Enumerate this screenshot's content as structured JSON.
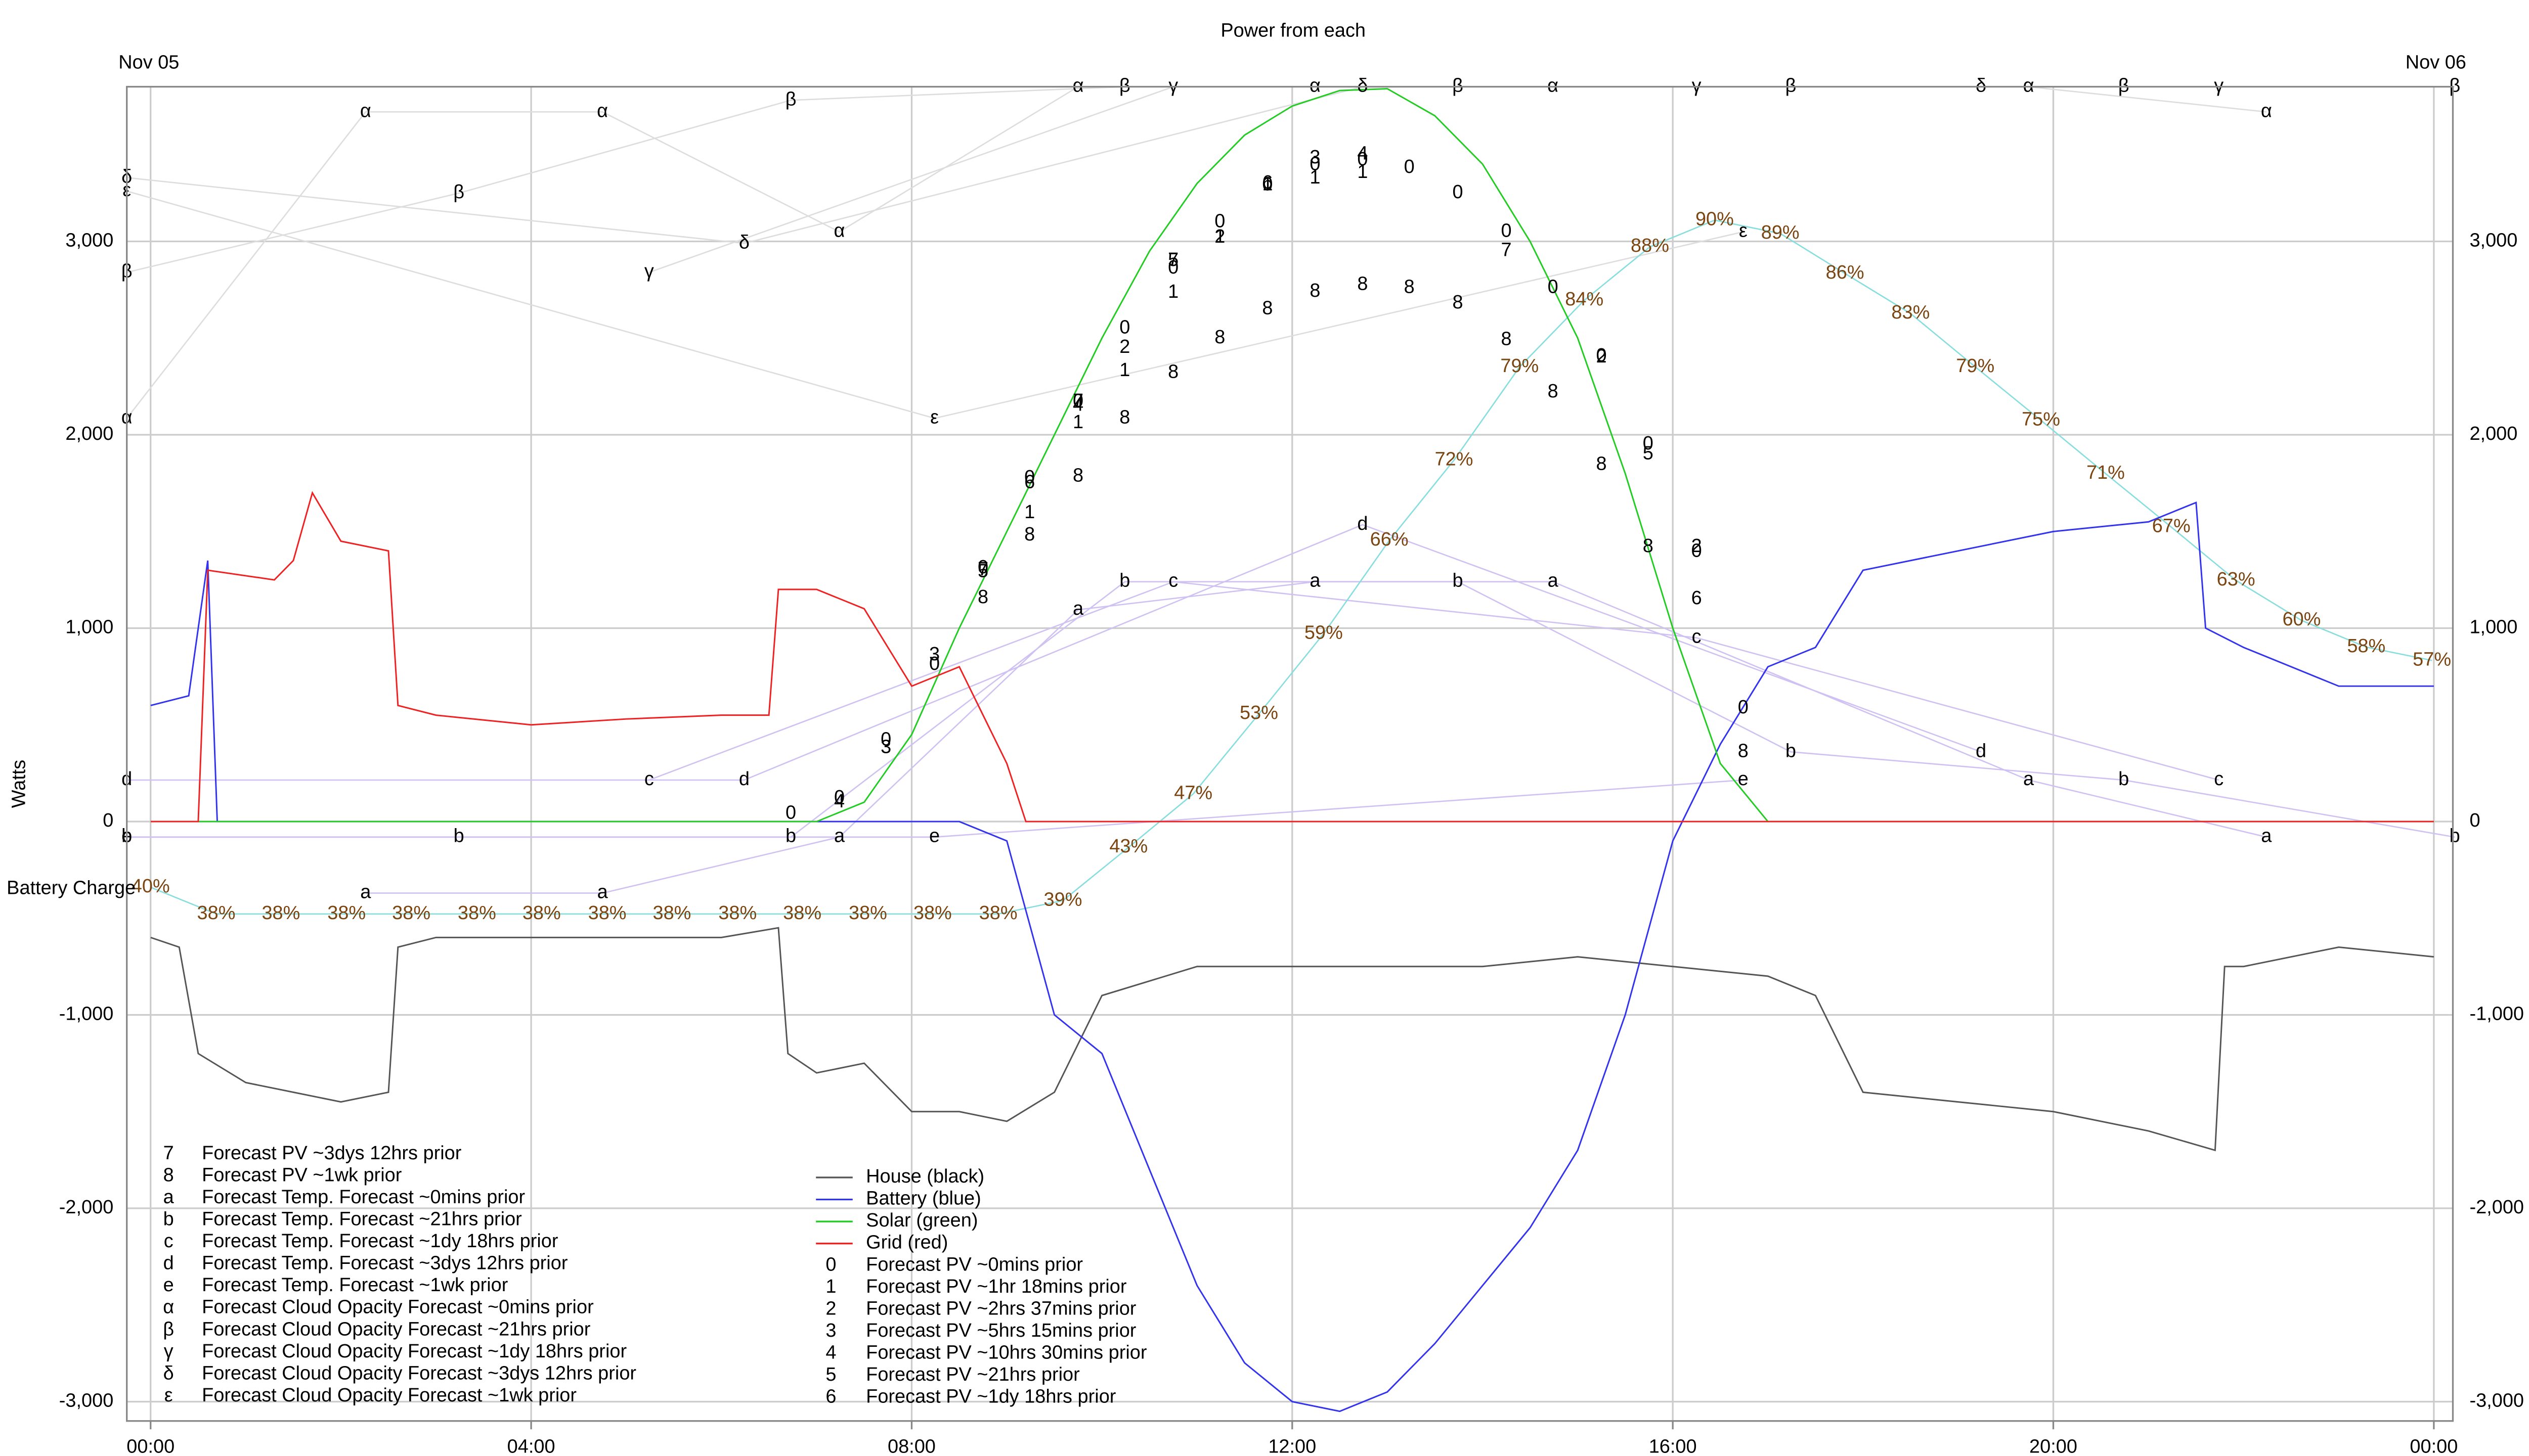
{
  "chart_data": {
    "type": "line",
    "title": "Power from each",
    "ylabel": "Watts",
    "y2label": "Battery Charge",
    "date_labels": [
      "Nov 05",
      "Nov 06"
    ],
    "xlim": [
      -0.25,
      24.2
    ],
    "xticks": [
      {
        "value": 0,
        "label": "00:00"
      },
      {
        "value": 4,
        "label": "04:00"
      },
      {
        "value": 8,
        "label": "08:00"
      },
      {
        "value": 12,
        "label": "12:00"
      },
      {
        "value": 16,
        "label": "16:00"
      },
      {
        "value": 20,
        "label": "20:00"
      },
      {
        "value": 24,
        "label": "00:00"
      }
    ],
    "ylim": [
      -3100,
      3800
    ],
    "yticks": [
      {
        "value": -3000,
        "label": "-3,000"
      },
      {
        "value": -2000,
        "label": "-2,000"
      },
      {
        "value": -1000,
        "label": "-1,000"
      },
      0,
      {
        "value": 1000,
        "label": "1,000"
      },
      {
        "value": 2000,
        "label": "2,000"
      },
      {
        "value": 3000,
        "label": "3,000"
      }
    ],
    "y2lim": [
      0,
      100
    ],
    "grid": true,
    "legend": "lower left",
    "series": [
      {
        "name": "House (black)",
        "color": "#555555",
        "x": [
          0,
          0.3,
          0.5,
          1,
          1.5,
          2,
          2.5,
          2.6,
          3,
          4,
          5,
          6,
          6.6,
          6.7,
          7,
          7.5,
          8,
          8.5,
          9,
          9.5,
          10,
          11,
          12,
          13,
          14,
          15,
          16,
          17,
          17.5,
          18,
          19,
          20,
          21,
          21.7,
          21.8,
          22,
          23,
          24
        ],
        "values": [
          -600,
          -650,
          -1200,
          -1350,
          -1400,
          -1450,
          -1400,
          -650,
          -600,
          -600,
          -600,
          -600,
          -550,
          -1200,
          -1300,
          -1250,
          -1500,
          -1500,
          -1550,
          -1400,
          -900,
          -750,
          -750,
          -750,
          -750,
          -700,
          -750,
          -800,
          -900,
          -1400,
          -1450,
          -1500,
          -1600,
          -1700,
          -750,
          -750,
          -650,
          -700
        ]
      },
      {
        "name": "Battery (blue)",
        "color": "#3333ee",
        "x": [
          0,
          0.4,
          0.6,
          0.7,
          2,
          4,
          6,
          7,
          7.5,
          8,
          8.5,
          9,
          9.5,
          10,
          10.5,
          11,
          11.5,
          12,
          12.5,
          13,
          13.5,
          14,
          14.5,
          15,
          15.5,
          16,
          16.5,
          17,
          17.5,
          18,
          19,
          20,
          21,
          21.5,
          21.6,
          22,
          22.5,
          23,
          24
        ],
        "values": [
          600,
          650,
          1350,
          0,
          0,
          0,
          0,
          0,
          0,
          0,
          0,
          -100,
          -1000,
          -1200,
          -1800,
          -2400,
          -2800,
          -3000,
          -3050,
          -2950,
          -2700,
          -2400,
          -2100,
          -1700,
          -1000,
          -100,
          400,
          800,
          900,
          1300,
          1400,
          1500,
          1550,
          1650,
          1000,
          900,
          800,
          700,
          700
        ]
      },
      {
        "name": "Solar (green)",
        "color": "#22cc22",
        "x": [
          0,
          7,
          7.5,
          8,
          8.5,
          9,
          9.5,
          10,
          10.5,
          11,
          11.5,
          12,
          12.5,
          13,
          13.5,
          14,
          14.5,
          15,
          15.5,
          16,
          16.5,
          17,
          24
        ],
        "values": [
          0,
          0,
          100,
          450,
          1000,
          1500,
          2000,
          2500,
          2950,
          3300,
          3550,
          3700,
          3780,
          3790,
          3650,
          3400,
          3000,
          2500,
          1800,
          1000,
          300,
          0,
          0
        ]
      },
      {
        "name": "Grid (red)",
        "color": "#ee2222",
        "x": [
          0,
          0.5,
          0.6,
          1.3,
          1.5,
          1.7,
          2,
          2.5,
          2.6,
          3,
          4,
          5,
          6,
          6.5,
          6.6,
          7,
          7.5,
          8,
          8.5,
          9,
          9.2,
          12,
          16,
          20,
          24
        ],
        "values": [
          0,
          0,
          1300,
          1250,
          1350,
          1700,
          1450,
          1400,
          600,
          550,
          500,
          530,
          550,
          550,
          1200,
          1200,
          1100,
          700,
          800,
          300,
          0,
          0,
          0,
          0,
          0
        ]
      }
    ],
    "charge": {
      "color": "#88dddd",
      "axis": "y2",
      "x": [
        0,
        0.69,
        1.37,
        2.06,
        2.74,
        3.43,
        4.11,
        4.8,
        5.48,
        6.17,
        6.85,
        7.54,
        8.22,
        8.91,
        9.59,
        10.28,
        10.96,
        11.65,
        12.33,
        13.02,
        13.7,
        14.39,
        15.07,
        15.76,
        16.44,
        17.13,
        17.81,
        18.5,
        19.18,
        19.87,
        20.55,
        21.24,
        21.92,
        22.61,
        23.29,
        23.98
      ],
      "values": [
        40,
        38,
        38,
        38,
        38,
        38,
        38,
        38,
        38,
        38,
        38,
        38,
        38,
        38,
        39,
        43,
        47,
        53,
        59,
        66,
        72,
        79,
        84,
        88,
        90,
        89,
        86,
        83,
        79,
        75,
        71,
        67,
        63,
        60,
        58,
        57
      ],
      "value_labels": [
        "40%",
        "38%",
        "38%",
        "38%",
        "38%",
        "38%",
        "38%",
        "38%",
        "38%",
        "38%",
        "38%",
        "38%",
        "38%",
        "38%",
        "39%",
        "43%",
        "47%",
        "53%",
        "59%",
        "66%",
        "72%",
        "79%",
        "84%",
        "88%",
        "90%",
        "89%",
        "86%",
        "83%",
        "79%",
        "75%",
        "71%",
        "67%",
        "63%",
        "60%",
        "58%",
        "57%"
      ]
    },
    "forecasts": [
      {
        "symbol": "7",
        "name": "Forecast PV ~3dys 12hrs prior",
        "x": [
          8.75,
          9.75,
          10.75,
          14.25
        ],
        "values": [
          1300,
          2170,
          2900,
          2950
        ]
      },
      {
        "symbol": "8",
        "name": "Forecast PV ~1wk prior",
        "x": [
          8.75,
          9.24,
          9.75,
          10.24,
          10.75,
          11.24,
          11.74,
          12.24,
          12.74,
          13.23,
          13.74,
          14.25,
          14.74,
          15.25,
          15.74,
          16.74
        ],
        "values": [
          1155,
          1480,
          1785,
          2085,
          2320,
          2500,
          2650,
          2740,
          2775,
          2760,
          2680,
          2490,
          2220,
          1845,
          1420,
          360
        ]
      },
      {
        "symbol": "a",
        "name": "Forecast Temp. Forecast ~0mins prior",
        "color": "#cfc2f2",
        "x": [
          2.26,
          4.75,
          7.24,
          9.75,
          12.24,
          14.74,
          19.74,
          22.24
        ],
        "values": [
          -370,
          -370,
          -80,
          1095,
          1240,
          1240,
          215,
          -80
        ]
      },
      {
        "symbol": "b",
        "name": "Forecast Temp. Forecast ~21hrs prior",
        "color": "#cfc2f2",
        "x": [
          -0.25,
          3.24,
          6.73,
          10.24,
          13.74,
          17.24,
          20.74,
          24.22
        ],
        "values": [
          -80,
          -80,
          -80,
          1240,
          1240,
          360,
          215,
          -80
        ]
      },
      {
        "symbol": "c",
        "name": "Forecast Temp. Forecast ~1dy 18hrs prior",
        "color": "#cfc2f2",
        "x": [
          5.24,
          10.75,
          16.25,
          21.74
        ],
        "values": [
          215,
          1240,
          950,
          215
        ]
      },
      {
        "symbol": "d",
        "name": "Forecast Temp. Forecast ~3dys 12hrs prior",
        "color": "#cfc2f2",
        "x": [
          -0.25,
          6.24,
          12.74,
          19.24
        ],
        "values": [
          215,
          215,
          1535,
          360
        ]
      },
      {
        "symbol": "e",
        "name": "Forecast Temp. Forecast ~1wk prior",
        "color": "#cfc2f2",
        "x": [
          -0.25,
          8.24,
          16.74
        ],
        "values": [
          -80,
          -80,
          215
        ]
      },
      {
        "symbol": "α",
        "name": "Forecast Cloud Opacity Forecast ~0mins prior",
        "color": "#dddddd",
        "x": [
          -0.25,
          2.26,
          4.75,
          7.24,
          9.75,
          12.24,
          14.74,
          19.74,
          22.24
        ],
        "values": [
          2085,
          3670,
          3670,
          3050,
          3800,
          3800,
          3800,
          3800,
          3670
        ]
      },
      {
        "symbol": "β",
        "name": "Forecast Cloud Opacity Forecast ~21hrs prior",
        "color": "#dddddd",
        "x": [
          -0.25,
          3.24,
          6.73,
          10.24,
          13.74,
          17.24,
          20.74,
          24.22
        ],
        "values": [
          2840,
          3250,
          3730,
          3800,
          3800,
          3800,
          3800,
          3800
        ]
      },
      {
        "symbol": "γ",
        "name": "Forecast Cloud Opacity Forecast ~1dy 18hrs prior",
        "color": "#dddddd",
        "x": [
          5.24,
          10.75,
          16.25,
          21.74
        ],
        "values": [
          2840,
          3800,
          3800,
          3800
        ]
      },
      {
        "symbol": "δ",
        "name": "Forecast Cloud Opacity Forecast ~3dys 12hrs prior",
        "color": "#dddddd",
        "x": [
          -0.25,
          6.24,
          12.74,
          19.24
        ],
        "values": [
          3330,
          2990,
          3800,
          3800
        ]
      },
      {
        "symbol": "ε",
        "name": "Forecast Cloud Opacity Forecast ~1wk prior",
        "color": "#dddddd",
        "x": [
          -0.25,
          8.24,
          16.74
        ],
        "values": [
          3260,
          2085,
          3050
        ]
      },
      {
        "symbol": "0",
        "name": "Forecast PV ~0mins prior",
        "x": [
          6.73,
          7.24,
          7.73,
          8.24,
          8.75,
          9.24,
          9.75,
          10.24,
          10.75,
          11.24,
          11.74,
          12.24,
          12.74,
          13.23,
          13.74,
          14.25,
          14.74,
          15.25,
          15.74,
          16.25,
          16.74
        ],
        "values": [
          40,
          120,
          420,
          810,
          1310,
          1775,
          2170,
          2550,
          2860,
          3100,
          3290,
          3395,
          3420,
          3380,
          3250,
          3050,
          2760,
          2405,
          1950,
          1395,
          585
        ]
      },
      {
        "symbol": "1",
        "name": "Forecast PV ~1hr 18mins prior",
        "x": [
          9.24,
          9.75,
          10.24,
          10.75,
          11.24,
          11.74,
          12.24,
          12.74
        ],
        "values": [
          1595,
          2060,
          2330,
          2735,
          3020,
          3290,
          3325,
          3355
        ]
      },
      {
        "symbol": "2",
        "name": "Forecast PV ~2hrs 37mins prior",
        "x": [
          10.24,
          11.24,
          15.25,
          16.25
        ],
        "values": [
          2450,
          3020,
          2400,
          1420
        ]
      },
      {
        "symbol": "3",
        "name": "Forecast PV ~5hrs 15mins prior",
        "x": [
          7.73,
          8.24,
          12.24
        ],
        "values": [
          380,
          860,
          3430
        ]
      },
      {
        "symbol": "4",
        "name": "Forecast PV ~10hrs 30mins prior",
        "x": [
          7.24,
          9.75,
          12.74
        ],
        "values": [
          100,
          2150,
          3450
        ]
      },
      {
        "symbol": "5",
        "name": "Forecast PV ~21hrs prior",
        "x": [
          8.75,
          10.75,
          15.74
        ],
        "values": [
          1290,
          2900,
          1900
        ]
      },
      {
        "symbol": "6",
        "name": "Forecast PV ~1dy 18hrs prior",
        "x": [
          9.24,
          11.74,
          16.25
        ],
        "values": [
          1750,
          3300,
          1150
        ]
      }
    ]
  }
}
